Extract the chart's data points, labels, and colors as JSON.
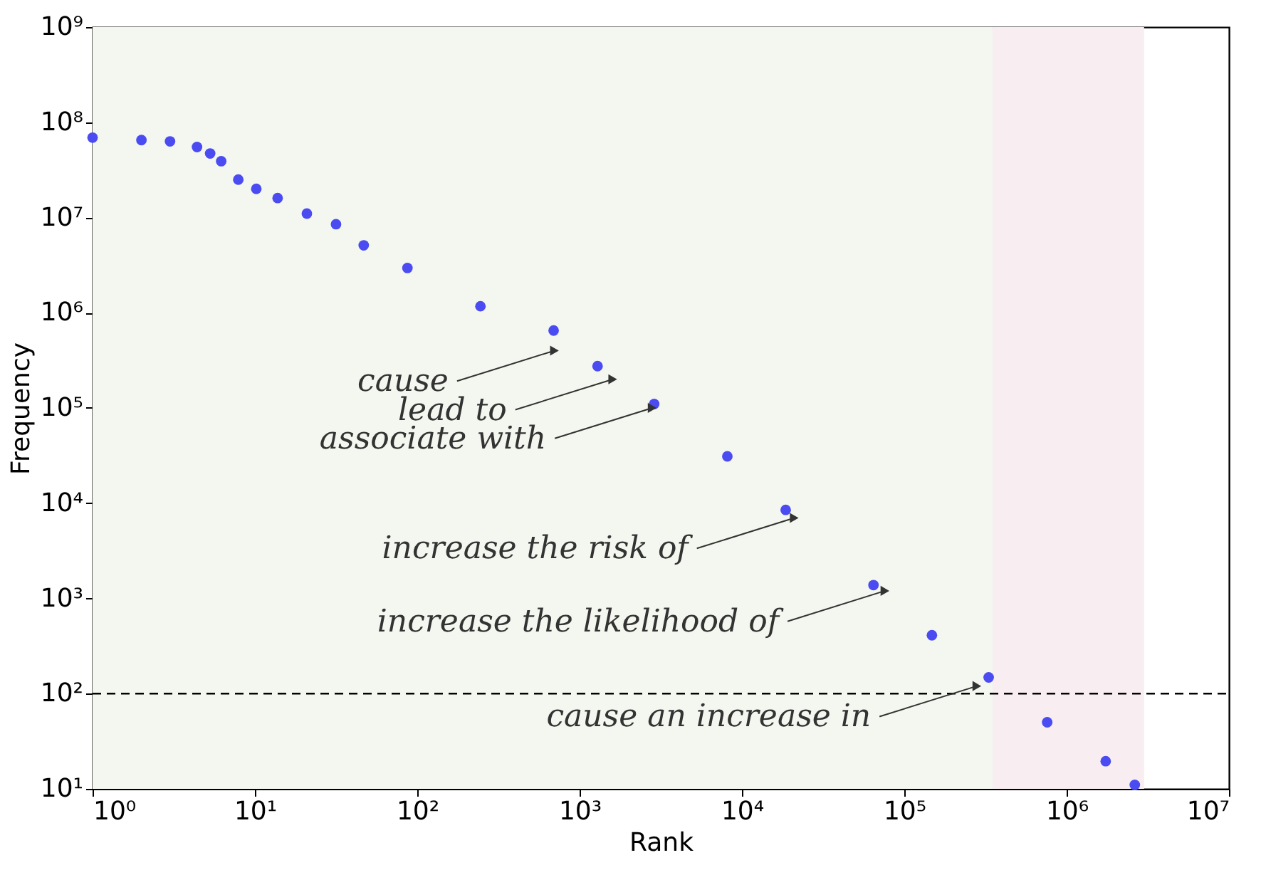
{
  "chart_data": {
    "type": "scatter",
    "xlabel": "Rank",
    "ylabel": "Frequency",
    "x": [
      1,
      2,
      3,
      4.4,
      5.3,
      6.2,
      7.9,
      10.2,
      13.8,
      20.9,
      31.6,
      46.8,
      87,
      245,
      692,
      1290,
      2880,
      8130,
      18600,
      64600,
      148000,
      331000,
      759000,
      1740000,
      2630000
    ],
    "series": [
      {
        "color": "#4b4bf2",
        "values": [
          69000000,
          65000000,
          63000000,
          55000000,
          47000000,
          39000000,
          25000000,
          20000000,
          16000000,
          11000000,
          8500000,
          5100000,
          2950000,
          1170000,
          650000,
          275000,
          110000,
          31000,
          8500,
          1380,
          410,
          148,
          50,
          19.5,
          11
        ]
      }
    ],
    "log": "xy",
    "marker": "circle",
    "grid": false,
    "xlim": [
      1,
      10000000
    ],
    "ylim": [
      10,
      1000000000
    ],
    "xticks": [
      {
        "value": 1,
        "label": "10⁰"
      },
      {
        "value": 10,
        "label": "10¹"
      },
      {
        "value": 100,
        "label": "10²"
      },
      {
        "value": 1000,
        "label": "10³"
      },
      {
        "value": 10000,
        "label": "10⁴"
      },
      {
        "value": 100000,
        "label": "10⁵"
      },
      {
        "value": 1000000,
        "label": "10⁶"
      },
      {
        "value": 10000000,
        "label": "10⁷"
      }
    ],
    "yticks": [
      {
        "value": 10,
        "label": "10¹"
      },
      {
        "value": 100,
        "label": "10²"
      },
      {
        "value": 1000,
        "label": "10³"
      },
      {
        "value": 10000,
        "label": "10⁴"
      },
      {
        "value": 100000,
        "label": "10⁵"
      },
      {
        "value": 1000000,
        "label": "10⁶"
      },
      {
        "value": 10000000,
        "label": "10⁷"
      },
      {
        "value": 100000000,
        "label": "10⁸"
      },
      {
        "value": 1000000000,
        "label": "10⁹"
      }
    ],
    "ref_lines": [
      {
        "axis": "y",
        "value": 100,
        "label": null,
        "color": "#000000",
        "line_style": "dashed"
      }
    ],
    "bands": [
      {
        "axis": "x",
        "from": 1,
        "to": 350000,
        "label": null,
        "color": "#f3f7ef"
      },
      {
        "axis": "x",
        "from": 350000,
        "to": 3000000,
        "label": null,
        "color": "#f8eef1"
      }
    ],
    "annotations": [
      {
        "text": "cause",
        "x": 700,
        "y": 400000
      },
      {
        "text": "lead to",
        "x": 1600,
        "y": 200000
      },
      {
        "text": "associate with",
        "x": 2800,
        "y": 100000
      },
      {
        "text": "increase the risk of",
        "x": 21000,
        "y": 7000
      },
      {
        "text": "increase the likelihood of",
        "x": 76000,
        "y": 1200
      },
      {
        "text": "cause an increase in",
        "x": 280000,
        "y": 120
      }
    ]
  }
}
